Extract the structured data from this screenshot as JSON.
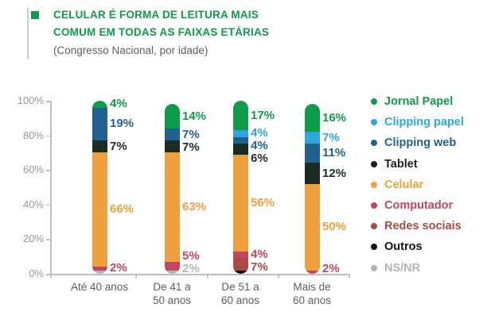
{
  "header": {
    "title_line1": "CELULAR É FORMA DE LEITURA MAIS",
    "title_line2": "COMUM EM TODAS AS FAIXAS ETÁRIAS",
    "subtitle": "(Congresso Nacional, por idade)"
  },
  "colors": {
    "title_green": "#0f9b4a",
    "axis_line": "#bdbec0",
    "axis_text": "#949699",
    "category_text": "#5d5e60"
  },
  "legend": [
    {
      "label": "Jornal Papel",
      "color": "#0f9b4a"
    },
    {
      "label": "Clipping papel",
      "color": "#2ba7dd"
    },
    {
      "label": "Clipping web",
      "color": "#20618f"
    },
    {
      "label": "Tablet",
      "color": "#221e1f"
    },
    {
      "label": "Celular",
      "color": "#efa03e"
    },
    {
      "label": "Computador",
      "color": "#c4455e"
    },
    {
      "label": "Redes sociais",
      "color": "#a84b42"
    },
    {
      "label": "Outros",
      "color": "#16120d"
    },
    {
      "label": "NS/NR",
      "color": "#b2b3b5"
    }
  ],
  "chart_data": {
    "type": "bar",
    "stacked": true,
    "title": "CELULAR É FORMA DE LEITURA MAIS COMUM EM TODAS AS FAIXAS ETÁRIAS",
    "subtitle": "(Congresso Nacional, por idade)",
    "ylabel": "",
    "xlabel": "",
    "ylim": [
      0,
      100
    ],
    "grid": false,
    "legend_position": "right",
    "yticks": [
      {
        "label": "100%",
        "value": 100
      },
      {
        "label": "80%",
        "value": 80
      },
      {
        "label": "60%",
        "value": 60
      },
      {
        "label": "40%",
        "value": 40
      },
      {
        "label": "20%",
        "value": 20
      },
      {
        "label": "0%",
        "value": 0
      }
    ],
    "categories": [
      {
        "lines": [
          "Até 40 anos"
        ]
      },
      {
        "lines": [
          "De 41 a",
          "50 anos"
        ]
      },
      {
        "lines": [
          "De 51 a",
          "60 anos"
        ]
      },
      {
        "lines": [
          "Mais de",
          "60 anos"
        ]
      }
    ],
    "segment_order": "top-to-bottom",
    "bars": [
      {
        "category": "Até 40 anos",
        "segments": [
          {
            "name": "Jornal Papel",
            "value": 4,
            "label": "4%",
            "color": "#0f9b4a",
            "label_color": "#0f9b4a"
          },
          {
            "name": "Clipping web",
            "value": 19,
            "label": "19%",
            "color": "#20618f",
            "label_color": "#20618f"
          },
          {
            "name": "Tablet",
            "value": 7,
            "label": "7%",
            "color": "#1c2c23",
            "label_color": "#1c2a33"
          },
          {
            "name": "Celular",
            "value": 66,
            "label": "66%",
            "color": "#efa03e",
            "label_color": "#efa03e"
          },
          {
            "name": "Computador",
            "value": 2,
            "label": "2%",
            "color": "#c4455e",
            "label_color": "#c4455e"
          },
          {
            "name": "NS/NR",
            "value": 2,
            "label": "",
            "color": "#b2b3b5",
            "label_color": "#b2b3b5"
          }
        ]
      },
      {
        "category": "De 41 a 50 anos",
        "segments": [
          {
            "name": "Jornal Papel",
            "value": 14,
            "label": "14%",
            "color": "#0f9b4a",
            "label_color": "#0f9b4a"
          },
          {
            "name": "Clipping web",
            "value": 7,
            "label": "7%",
            "color": "#20618f",
            "label_color": "#20618f"
          },
          {
            "name": "Tablet",
            "value": 7,
            "label": "7%",
            "color": "#1c2c23",
            "label_color": "#1c2a33"
          },
          {
            "name": "Celular",
            "value": 63,
            "label": "63%",
            "color": "#efa03e",
            "label_color": "#efa03e"
          },
          {
            "name": "Computador",
            "value": 5,
            "label": "5%",
            "color": "#c4455e",
            "label_color": "#c4455e"
          },
          {
            "name": "NS/NR",
            "value": 2,
            "label": "2%",
            "color": "#b2b3b5",
            "label_color": "#b2b3b5"
          }
        ]
      },
      {
        "category": "De 51 a 60 anos",
        "segments": [
          {
            "name": "Jornal Papel",
            "value": 17,
            "label": "17%",
            "color": "#0f9b4a",
            "label_color": "#0f9b4a"
          },
          {
            "name": "Clipping papel",
            "value": 4,
            "label": "4%",
            "color": "#2ba7dd",
            "label_color": "#2ba7dd"
          },
          {
            "name": "Clipping web",
            "value": 4,
            "label": "4%",
            "color": "#20618f",
            "label_color": "#20618f"
          },
          {
            "name": "Tablet",
            "value": 6,
            "label": "6%",
            "color": "#1c2c23",
            "label_color": "#1c2a33"
          },
          {
            "name": "Celular",
            "value": 56,
            "label": "56%",
            "color": "#efa03e",
            "label_color": "#efa03e"
          },
          {
            "name": "Computador",
            "value": 4,
            "label": "4%",
            "color": "#c4455e",
            "label_color": "#c4455e"
          },
          {
            "name": "Redes sociais",
            "value": 7,
            "label": "7%",
            "color": "#a84b42",
            "label_color": "#a84b42"
          },
          {
            "name": "Outros",
            "value": 2,
            "label": "",
            "color": "#16120d",
            "label_color": "#16120d"
          }
        ]
      },
      {
        "category": "Mais de 60 anos",
        "segments": [
          {
            "name": "Jornal Papel",
            "value": 16,
            "label": "16%",
            "color": "#0f9b4a",
            "label_color": "#0f9b4a"
          },
          {
            "name": "Clipping papel",
            "value": 7,
            "label": "7%",
            "color": "#2ba7dd",
            "label_color": "#2ba7dd"
          },
          {
            "name": "Clipping web",
            "value": 11,
            "label": "11%",
            "color": "#20618f",
            "label_color": "#20618f"
          },
          {
            "name": "Tablet",
            "value": 12,
            "label": "12%",
            "color": "#1c2c23",
            "label_color": "#1c2a33"
          },
          {
            "name": "Celular",
            "value": 50,
            "label": "50%",
            "color": "#efa03e",
            "label_color": "#efa03e"
          },
          {
            "name": "Computador",
            "value": 2,
            "label": "2%",
            "color": "#c4455e",
            "label_color": "#c4455e"
          }
        ]
      }
    ]
  }
}
